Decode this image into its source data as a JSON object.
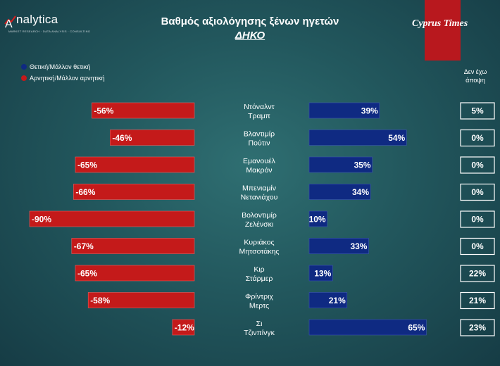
{
  "header": {
    "title": "Βαθμός αξιολόγησης ξένων ηγετών",
    "subtitle": "ΔΗΚΟ",
    "logo_text": "nalytica",
    "logo_tagline": "MARKET RESEARCH · DATA ANALYSIS · CONSULTING",
    "brand": "Cyprus Times"
  },
  "legend": {
    "positive": "Θετική/Μάλλον θετική",
    "negative": "Αρνητική/Μάλλον αρνητική",
    "no_opinion_header": [
      "Δεν έχω",
      "άποψη"
    ]
  },
  "colors": {
    "positive": "#0f2a82",
    "negative": "#c41a1a",
    "logo_accent": "#d61f1f"
  },
  "chart_data": {
    "type": "bar",
    "categories": [
      [
        "Ντόναλντ",
        "Τραμπ"
      ],
      [
        "Βλαντιμίρ",
        "Πούτιν"
      ],
      [
        "Εμανουέλ",
        "Μακρόν"
      ],
      [
        "Μπενιαμίν",
        "Νετανιάχου"
      ],
      [
        "Βολοντιμίρ",
        "Ζελένσκι"
      ],
      [
        "Κυριάκος",
        "Μητσοτάκης"
      ],
      [
        "Κιρ",
        "Στάρμερ"
      ],
      [
        "Φρίντριχ",
        "Μερτς"
      ],
      [
        "Σι",
        "Τζινπίνγκ"
      ]
    ],
    "series": [
      {
        "name": "Θετική/Μάλλον θετική",
        "values": [
          39,
          54,
          35,
          34,
          10,
          33,
          13,
          21,
          65
        ]
      },
      {
        "name": "Αρνητική/Μάλλον αρνητική",
        "values": [
          -56,
          -46,
          -65,
          -66,
          -90,
          -67,
          -65,
          -58,
          -12
        ]
      },
      {
        "name": "Δεν έχω άποψη",
        "values": [
          5,
          0,
          0,
          0,
          0,
          0,
          22,
          21,
          23
        ]
      }
    ],
    "unit": "%"
  }
}
